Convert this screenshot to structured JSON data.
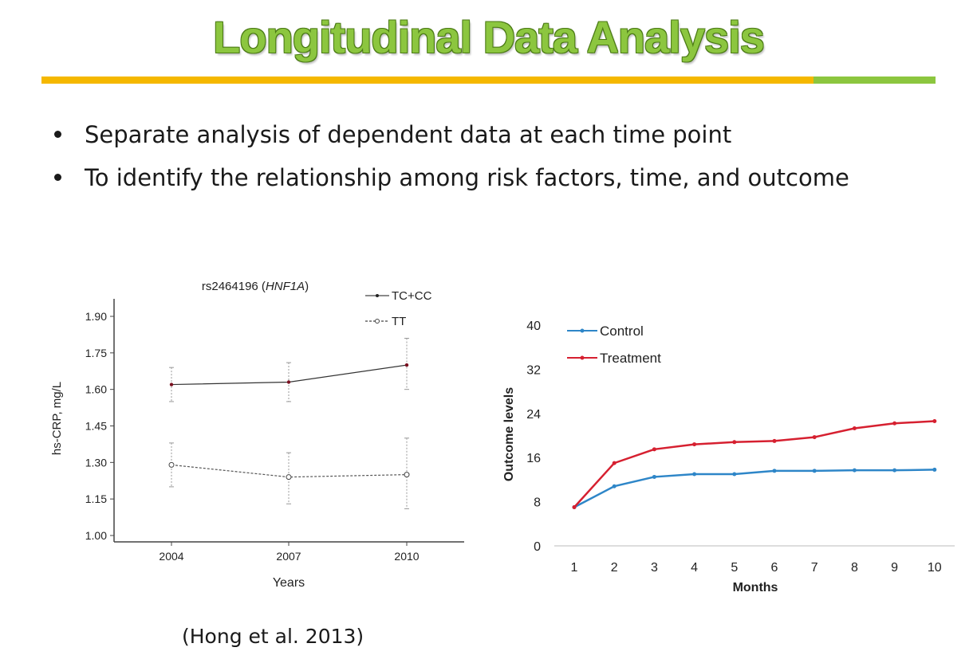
{
  "slide": {
    "title": "Longitudinal Data Analysis",
    "bullets": [
      "Separate analysis of dependent data at each time point",
      "To identify the relationship among risk factors, time, and outcome"
    ],
    "citation": "(Hong et al. 2013)",
    "colors": {
      "title": "#8cc63f",
      "rule_orange": "#f5b800",
      "rule_green": "#8cc63f"
    }
  },
  "chart_data": [
    {
      "type": "line",
      "title": "rs2464196 (HNF1A)",
      "title_prefix": "rs2464196 (",
      "title_italic": "HNF1A",
      "title_suffix": ")",
      "xlabel": "Years",
      "ylabel": "hs-CRP, mg/L",
      "categories": [
        "2004",
        "2007",
        "2010"
      ],
      "ylim": [
        1.0,
        1.9
      ],
      "yticks": [
        "1.90",
        "1.75",
        "1.60",
        "1.45",
        "1.30",
        "1.15",
        "1.00"
      ],
      "legend_position": "top-right",
      "series": [
        {
          "name": "TC+CC",
          "style": "solid",
          "values": [
            1.62,
            1.63,
            1.7
          ],
          "err_low": [
            1.55,
            1.55,
            1.6
          ],
          "err_high": [
            1.69,
            1.71,
            1.81
          ]
        },
        {
          "name": "TT",
          "style": "dashed",
          "values": [
            1.29,
            1.24,
            1.25
          ],
          "err_low": [
            1.2,
            1.13,
            1.11
          ],
          "err_high": [
            1.38,
            1.34,
            1.4
          ]
        }
      ]
    },
    {
      "type": "line",
      "xlabel": "Months",
      "ylabel": "Outcome levels",
      "x": [
        1,
        2,
        3,
        4,
        5,
        6,
        7,
        8,
        9,
        10
      ],
      "ylim": [
        0,
        40
      ],
      "yticks": [
        "0",
        "8",
        "16",
        "24",
        "32",
        "40"
      ],
      "legend_position": "top-left",
      "series": [
        {
          "name": "Control",
          "color": "#2e86c8",
          "values": [
            7.0,
            10.8,
            12.5,
            13.0,
            13.0,
            13.6,
            13.6,
            13.7,
            13.7,
            13.8
          ]
        },
        {
          "name": "Treatment",
          "color": "#d62030",
          "values": [
            7.0,
            15.0,
            17.5,
            18.4,
            18.8,
            19.0,
            19.7,
            21.3,
            22.2,
            22.6
          ]
        }
      ]
    }
  ]
}
